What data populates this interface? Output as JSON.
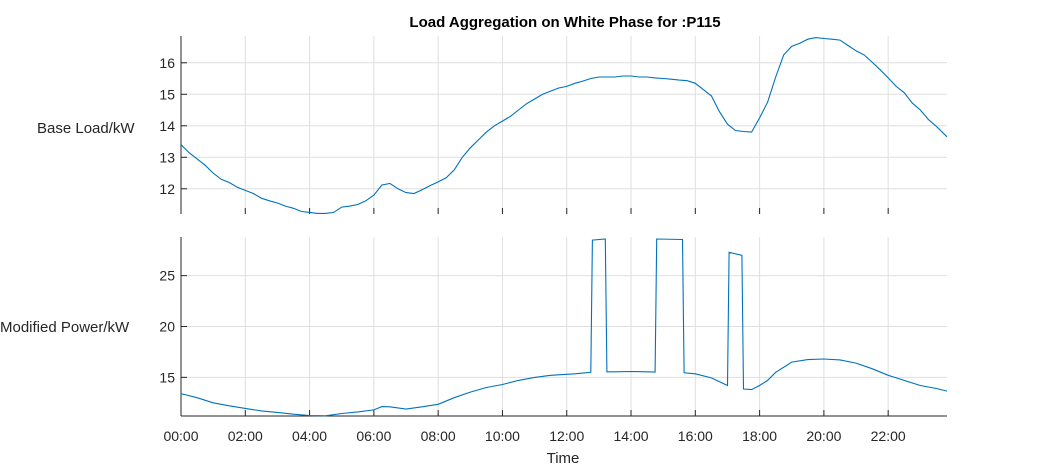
{
  "chart_data": [
    {
      "type": "line",
      "title": "Load Aggregation on White Phase for :P115",
      "ylabel": "Base Load/kW",
      "xlabel": "",
      "ylim": [
        11.2,
        16.85
      ],
      "xlim": [
        0,
        23.83
      ],
      "yticks": [
        12,
        13,
        14,
        15,
        16
      ],
      "xticks": [
        0,
        2,
        4,
        6,
        8,
        10,
        12,
        14,
        16,
        18,
        20,
        22
      ],
      "xtick_labels": [
        "00:00",
        "02:00",
        "04:00",
        "06:00",
        "08:00",
        "10:00",
        "12:00",
        "14:00",
        "16:00",
        "18:00",
        "20:00",
        "22:00"
      ],
      "show_xtick_labels": false,
      "grid": true,
      "line_color": "#0072bd",
      "x": [
        0,
        0.25,
        0.5,
        0.75,
        1,
        1.25,
        1.5,
        1.75,
        2,
        2.25,
        2.5,
        2.75,
        3,
        3.25,
        3.5,
        3.75,
        4,
        4.25,
        4.5,
        4.75,
        5,
        5.25,
        5.5,
        5.75,
        6,
        6.25,
        6.5,
        6.75,
        7,
        7.25,
        7.5,
        7.75,
        8,
        8.25,
        8.5,
        8.75,
        9,
        9.25,
        9.5,
        9.75,
        10,
        10.25,
        10.5,
        10.75,
        11,
        11.25,
        11.5,
        11.75,
        12,
        12.25,
        12.5,
        12.75,
        13,
        13.25,
        13.5,
        13.75,
        14,
        14.25,
        14.5,
        14.75,
        15,
        15.25,
        15.5,
        15.75,
        16,
        16.25,
        16.5,
        16.75,
        17,
        17.25,
        17.5,
        17.75,
        18,
        18.25,
        18.5,
        18.75,
        19,
        19.25,
        19.5,
        19.75,
        20,
        20.25,
        20.5,
        20.75,
        21,
        21.25,
        21.5,
        21.75,
        22,
        22.25,
        22.5,
        22.75,
        23,
        23.25,
        23.5,
        23.83
      ],
      "values": [
        13.4,
        13.15,
        12.95,
        12.75,
        12.5,
        12.3,
        12.2,
        12.05,
        11.95,
        11.85,
        11.7,
        11.62,
        11.55,
        11.45,
        11.38,
        11.28,
        11.25,
        11.22,
        11.22,
        11.25,
        11.42,
        11.45,
        11.5,
        11.62,
        11.8,
        12.12,
        12.17,
        12.0,
        11.88,
        11.85,
        11.97,
        12.1,
        12.22,
        12.35,
        12.6,
        13.0,
        13.3,
        13.55,
        13.8,
        14.0,
        14.15,
        14.3,
        14.5,
        14.7,
        14.85,
        15.0,
        15.1,
        15.2,
        15.25,
        15.35,
        15.42,
        15.5,
        15.55,
        15.55,
        15.55,
        15.58,
        15.58,
        15.55,
        15.55,
        15.52,
        15.5,
        15.48,
        15.45,
        15.43,
        15.35,
        15.15,
        14.95,
        14.45,
        14.05,
        13.85,
        13.82,
        13.8,
        14.25,
        14.75,
        15.55,
        16.25,
        16.52,
        16.62,
        16.75,
        16.8,
        16.77,
        16.75,
        16.72,
        16.55,
        16.38,
        16.25,
        16.02,
        15.78,
        15.52,
        15.25,
        15.05,
        14.72,
        14.5,
        14.2,
        13.98,
        13.65
      ]
    },
    {
      "type": "line",
      "title": "",
      "ylabel": "Modified Power/kW",
      "xlabel": "Time",
      "ylim": [
        11.2,
        28.8
      ],
      "xlim": [
        0,
        23.83
      ],
      "yticks": [
        15,
        20,
        25
      ],
      "xticks": [
        0,
        2,
        4,
        6,
        8,
        10,
        12,
        14,
        16,
        18,
        20,
        22
      ],
      "xtick_labels": [
        "00:00",
        "02:00",
        "04:00",
        "06:00",
        "08:00",
        "10:00",
        "12:00",
        "14:00",
        "16:00",
        "18:00",
        "20:00",
        "22:00"
      ],
      "show_xtick_labels": true,
      "grid": true,
      "line_color": "#0072bd",
      "x": [
        0,
        0.5,
        1,
        1.5,
        2,
        2.5,
        3,
        3.5,
        4,
        4.5,
        5,
        5.5,
        6,
        6.25,
        6.5,
        7,
        7.5,
        8,
        8.5,
        9,
        9.5,
        10,
        10.5,
        11,
        11.5,
        12,
        12.25,
        12.5,
        12.75,
        12.8,
        13.2,
        13.25,
        13.5,
        14,
        14.5,
        14.75,
        14.8,
        15.6,
        15.65,
        16,
        16.5,
        17,
        17.05,
        17.45,
        17.5,
        17.75,
        18,
        18.25,
        18.5,
        19,
        19.5,
        20,
        20.5,
        21,
        21.5,
        22,
        22.5,
        23,
        23.5,
        23.83
      ],
      "values": [
        13.4,
        13.0,
        12.5,
        12.2,
        11.95,
        11.7,
        11.55,
        11.38,
        11.25,
        11.22,
        11.45,
        11.6,
        11.8,
        12.12,
        12.1,
        11.88,
        12.1,
        12.35,
        13.0,
        13.55,
        14.0,
        14.3,
        14.7,
        15.0,
        15.2,
        15.3,
        15.35,
        15.42,
        15.5,
        28.5,
        28.6,
        15.55,
        15.55,
        15.58,
        15.55,
        15.52,
        28.6,
        28.55,
        15.45,
        15.35,
        14.95,
        14.2,
        27.3,
        27.0,
        13.85,
        13.8,
        14.2,
        14.7,
        15.5,
        16.5,
        16.75,
        16.8,
        16.72,
        16.4,
        15.85,
        15.2,
        14.7,
        14.2,
        13.9,
        13.65
      ]
    }
  ]
}
